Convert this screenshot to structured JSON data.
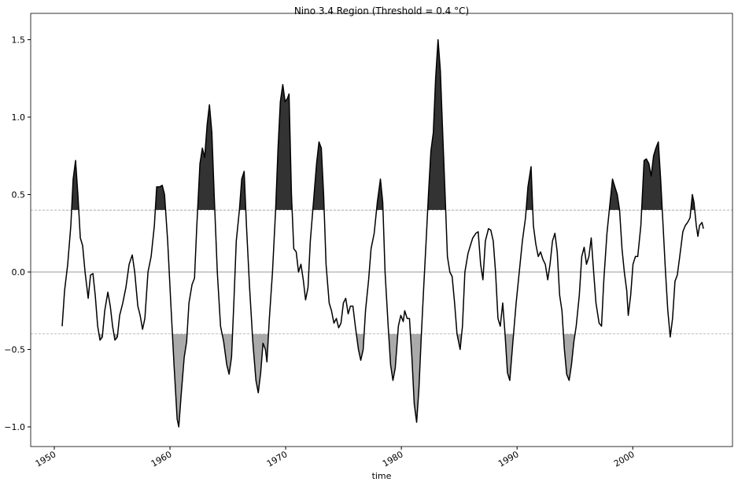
{
  "chart_data": {
    "type": "line",
    "title": "Nino 3.4 Region (Threshold = 0.4 °C)",
    "x_label": "time",
    "threshold": 0.4,
    "line_color": "#000000",
    "above_color": "#333333",
    "below_color": "#aaaaaa",
    "xlim": [
      1947.96,
      2008.62
    ],
    "xticks": [
      1950,
      1960,
      1970,
      1980,
      1990,
      2000
    ],
    "ylim": [
      -1.127,
      1.67
    ],
    "yticks": [
      {
        "value": -1.0,
        "label": "−1.0"
      },
      {
        "value": -0.5,
        "label": "−0.5"
      },
      {
        "value": 0.0,
        "label": "0.0"
      },
      0.5,
      {
        "value": 1.0,
        "label": "1.0"
      },
      1.5
    ],
    "x": [
      1950.68,
      1950.89,
      1951.16,
      1951.43,
      1951.63,
      1951.84,
      1952.04,
      1952.25,
      1952.45,
      1952.66,
      1952.93,
      1953.13,
      1953.34,
      1953.54,
      1953.75,
      1953.95,
      1954.15,
      1954.36,
      1954.63,
      1954.84,
      1955.04,
      1955.24,
      1955.45,
      1955.65,
      1955.92,
      1956.19,
      1956.47,
      1956.74,
      1956.95,
      1957.22,
      1957.42,
      1957.63,
      1957.83,
      1958.1,
      1958.37,
      1958.65,
      1958.85,
      1959.12,
      1959.33,
      1959.53,
      1959.8,
      1960.07,
      1960.35,
      1960.62,
      1960.76,
      1960.96,
      1961.23,
      1961.44,
      1961.64,
      1961.91,
      1962.12,
      1962.32,
      1962.59,
      1962.8,
      1963.0,
      1963.21,
      1963.41,
      1963.62,
      1963.82,
      1964.09,
      1964.37,
      1964.64,
      1964.91,
      1965.11,
      1965.32,
      1965.52,
      1965.73,
      1966.0,
      1966.2,
      1966.41,
      1966.61,
      1966.88,
      1967.16,
      1967.43,
      1967.63,
      1967.84,
      1968.04,
      1968.25,
      1968.38,
      1968.59,
      1968.86,
      1969.13,
      1969.34,
      1969.54,
      1969.75,
      1969.95,
      1970.15,
      1970.29,
      1970.5,
      1970.7,
      1970.91,
      1971.11,
      1971.32,
      1971.52,
      1971.72,
      1971.93,
      1972.13,
      1972.4,
      1972.67,
      1972.88,
      1973.08,
      1973.28,
      1973.49,
      1973.76,
      1973.96,
      1974.17,
      1974.38,
      1974.58,
      1974.78,
      1974.99,
      1975.19,
      1975.4,
      1975.6,
      1975.81,
      1976.02,
      1976.29,
      1976.49,
      1976.7,
      1976.9,
      1977.17,
      1977.38,
      1977.65,
      1977.92,
      1978.19,
      1978.39,
      1978.59,
      1978.86,
      1979.07,
      1979.27,
      1979.47,
      1979.74,
      1979.95,
      1980.16,
      1980.29,
      1980.5,
      1980.7,
      1980.91,
      1981.11,
      1981.32,
      1981.52,
      1981.73,
      1981.93,
      1982.14,
      1982.34,
      1982.55,
      1982.76,
      1982.96,
      1983.17,
      1983.37,
      1983.57,
      1983.78,
      1983.98,
      1984.19,
      1984.39,
      1984.6,
      1984.81,
      1985.08,
      1985.28,
      1985.49,
      1985.76,
      1985.96,
      1986.17,
      1986.44,
      1986.64,
      1986.85,
      1987.05,
      1987.26,
      1987.53,
      1987.73,
      1987.94,
      1988.14,
      1988.35,
      1988.55,
      1988.76,
      1988.96,
      1989.17,
      1989.37,
      1989.64,
      1989.92,
      1990.19,
      1990.46,
      1990.73,
      1990.94,
      1991.21,
      1991.41,
      1991.62,
      1991.83,
      1992.03,
      1992.24,
      1992.44,
      1992.65,
      1992.85,
      1993.06,
      1993.27,
      1993.47,
      1993.68,
      1993.88,
      1994.09,
      1994.29,
      1994.5,
      1994.7,
      1994.91,
      1995.11,
      1995.38,
      1995.59,
      1995.8,
      1996.0,
      1996.21,
      1996.41,
      1996.62,
      1996.82,
      1997.09,
      1997.3,
      1997.5,
      1997.77,
      1998.04,
      1998.25,
      1998.45,
      1998.66,
      1998.86,
      1999.07,
      1999.27,
      1999.48,
      1999.61,
      1999.82,
      2000.02,
      2000.23,
      2000.43,
      2000.7,
      2000.98,
      2001.18,
      2001.39,
      2001.59,
      2001.8,
      2002.0,
      2002.21,
      2002.41,
      2002.62,
      2002.83,
      2003.03,
      2003.24,
      2003.44,
      2003.65,
      2003.85,
      2004.06,
      2004.33,
      2004.54,
      2004.74,
      2004.95,
      2005.15,
      2005.29,
      2005.49,
      2005.63,
      2005.77,
      2005.98,
      2006.11
    ],
    "values": [
      -0.35,
      -0.12,
      0.05,
      0.3,
      0.6,
      0.72,
      0.5,
      0.22,
      0.17,
      0.0,
      -0.17,
      -0.02,
      -0.01,
      -0.15,
      -0.35,
      -0.44,
      -0.42,
      -0.25,
      -0.13,
      -0.22,
      -0.35,
      -0.44,
      -0.42,
      -0.28,
      -0.2,
      -0.1,
      0.05,
      0.11,
      0.0,
      -0.22,
      -0.28,
      -0.37,
      -0.3,
      0.0,
      0.1,
      0.3,
      0.55,
      0.55,
      0.56,
      0.5,
      0.2,
      -0.2,
      -0.6,
      -0.95,
      -1.0,
      -0.8,
      -0.55,
      -0.45,
      -0.2,
      -0.08,
      -0.04,
      0.3,
      0.7,
      0.8,
      0.74,
      0.95,
      1.08,
      0.9,
      0.5,
      0.0,
      -0.35,
      -0.45,
      -0.6,
      -0.66,
      -0.55,
      -0.2,
      0.2,
      0.4,
      0.6,
      0.65,
      0.3,
      -0.1,
      -0.45,
      -0.7,
      -0.78,
      -0.65,
      -0.46,
      -0.5,
      -0.58,
      -0.3,
      0.0,
      0.4,
      0.8,
      1.1,
      1.21,
      1.1,
      1.12,
      1.15,
      0.5,
      0.15,
      0.13,
      0.0,
      0.05,
      -0.05,
      -0.18,
      -0.1,
      0.2,
      0.45,
      0.7,
      0.84,
      0.8,
      0.5,
      0.05,
      -0.2,
      -0.25,
      -0.33,
      -0.3,
      -0.36,
      -0.33,
      -0.2,
      -0.17,
      -0.27,
      -0.22,
      -0.22,
      -0.35,
      -0.5,
      -0.57,
      -0.5,
      -0.25,
      -0.05,
      0.15,
      0.25,
      0.45,
      0.6,
      0.45,
      0.0,
      -0.35,
      -0.6,
      -0.7,
      -0.62,
      -0.35,
      -0.28,
      -0.32,
      -0.25,
      -0.3,
      -0.3,
      -0.55,
      -0.85,
      -0.97,
      -0.75,
      -0.4,
      -0.1,
      0.2,
      0.5,
      0.78,
      0.9,
      1.25,
      1.5,
      1.3,
      0.9,
      0.5,
      0.1,
      0.0,
      -0.03,
      -0.2,
      -0.4,
      -0.5,
      -0.35,
      0.0,
      0.12,
      0.17,
      0.22,
      0.25,
      0.26,
      0.05,
      -0.05,
      0.2,
      0.28,
      0.27,
      0.2,
      0.0,
      -0.3,
      -0.35,
      -0.2,
      -0.4,
      -0.65,
      -0.7,
      -0.45,
      -0.2,
      0.0,
      0.2,
      0.35,
      0.55,
      0.68,
      0.3,
      0.18,
      0.1,
      0.13,
      0.08,
      0.05,
      -0.05,
      0.05,
      0.2,
      0.25,
      0.13,
      -0.15,
      -0.25,
      -0.5,
      -0.66,
      -0.7,
      -0.6,
      -0.45,
      -0.35,
      -0.15,
      0.1,
      0.16,
      0.05,
      0.1,
      0.22,
      0.0,
      -0.2,
      -0.33,
      -0.35,
      -0.05,
      0.25,
      0.45,
      0.6,
      0.55,
      0.5,
      0.4,
      0.15,
      0.0,
      -0.12,
      -0.28,
      -0.15,
      0.05,
      0.1,
      0.1,
      0.3,
      0.72,
      0.73,
      0.7,
      0.62,
      0.75,
      0.8,
      0.84,
      0.6,
      0.3,
      0.0,
      -0.25,
      -0.42,
      -0.3,
      -0.06,
      -0.02,
      0.1,
      0.26,
      0.3,
      0.32,
      0.35,
      0.5,
      0.45,
      0.3,
      0.23,
      0.3,
      0.32,
      0.28
    ]
  }
}
